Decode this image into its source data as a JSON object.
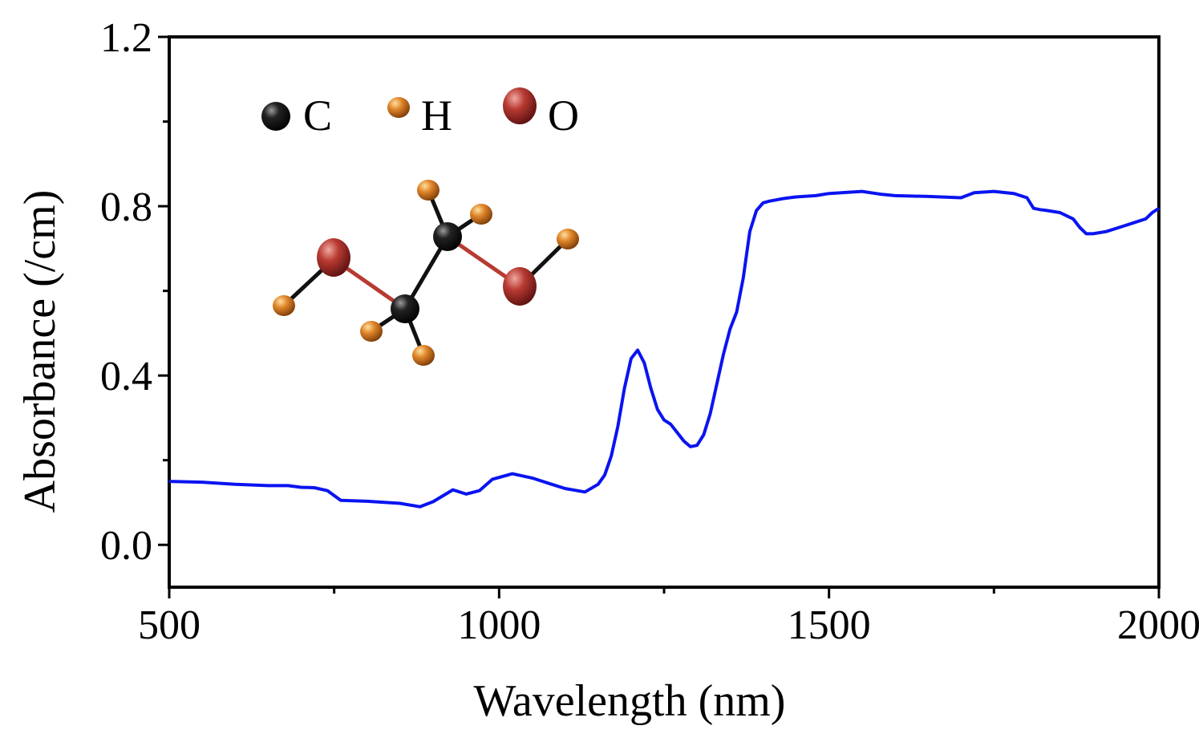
{
  "chart_data": {
    "type": "line",
    "xlabel": "Wavelength (nm)",
    "ylabel": "Absorbance (/cm)",
    "xlim": [
      500,
      2000
    ],
    "ylim": [
      -0.1,
      1.2
    ],
    "x_ticks": [
      500,
      1000,
      1500,
      2000
    ],
    "x_tick_labels": [
      "500",
      "1000",
      "1500",
      "2000"
    ],
    "y_ticks": [
      0.0,
      0.4,
      0.8,
      1.2
    ],
    "y_tick_labels": [
      "0.0",
      "0.4",
      "0.8",
      "1.2"
    ],
    "grid": false,
    "series": [
      {
        "color": "#0a14f0",
        "x": [
          500,
          550,
          600,
          650,
          680,
          700,
          720,
          740,
          760,
          800,
          850,
          880,
          900,
          930,
          950,
          970,
          990,
          1020,
          1050,
          1080,
          1100,
          1130,
          1150,
          1160,
          1170,
          1180,
          1190,
          1200,
          1210,
          1220,
          1230,
          1240,
          1250,
          1260,
          1270,
          1280,
          1290,
          1300,
          1310,
          1320,
          1330,
          1340,
          1350,
          1360,
          1370,
          1380,
          1390,
          1400,
          1410,
          1420,
          1430,
          1440,
          1450,
          1480,
          1500,
          1550,
          1580,
          1600,
          1650,
          1700,
          1720,
          1750,
          1780,
          1800,
          1810,
          1820,
          1830,
          1850,
          1870,
          1880,
          1890,
          1900,
          1920,
          1940,
          1960,
          1980,
          1990,
          2000
        ],
        "y": [
          0.15,
          0.148,
          0.143,
          0.14,
          0.14,
          0.136,
          0.135,
          0.128,
          0.105,
          0.103,
          0.098,
          0.09,
          0.102,
          0.13,
          0.12,
          0.128,
          0.155,
          0.168,
          0.158,
          0.143,
          0.133,
          0.125,
          0.143,
          0.165,
          0.21,
          0.28,
          0.37,
          0.44,
          0.46,
          0.43,
          0.37,
          0.32,
          0.295,
          0.285,
          0.265,
          0.245,
          0.232,
          0.235,
          0.26,
          0.31,
          0.38,
          0.45,
          0.51,
          0.55,
          0.63,
          0.74,
          0.79,
          0.808,
          0.812,
          0.815,
          0.818,
          0.82,
          0.822,
          0.825,
          0.83,
          0.835,
          0.828,
          0.825,
          0.823,
          0.82,
          0.832,
          0.835,
          0.83,
          0.82,
          0.795,
          0.792,
          0.79,
          0.785,
          0.77,
          0.75,
          0.735,
          0.735,
          0.74,
          0.75,
          0.76,
          0.77,
          0.785,
          0.795
        ]
      }
    ]
  },
  "legend": {
    "items": [
      {
        "label": "C",
        "color": "#111111"
      },
      {
        "label": "H",
        "color": "#d9822b"
      },
      {
        "label": "O",
        "color": "#b83a32"
      }
    ]
  }
}
